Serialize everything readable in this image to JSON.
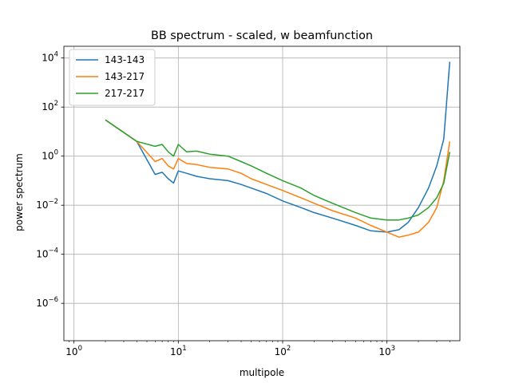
{
  "chart_data": {
    "type": "line",
    "title": "BB spectrum - scaled, w beamfunction",
    "xlabel": "multipole",
    "ylabel": "power spectrum",
    "xscale": "log",
    "yscale": "log",
    "xlim": [
      0.8,
      5000
    ],
    "ylim": [
      3e-08,
      30000
    ],
    "grid": true,
    "legend_position": "top-left",
    "x_ticks": [
      {
        "value": 1,
        "base": "10",
        "exp": "0"
      },
      {
        "value": 10,
        "base": "10",
        "exp": "1"
      },
      {
        "value": 100,
        "base": "10",
        "exp": "2"
      },
      {
        "value": 1000,
        "base": "10",
        "exp": "3"
      }
    ],
    "y_ticks": [
      {
        "value": 1e-06,
        "base": "10",
        "exp": "−6"
      },
      {
        "value": 0.0001,
        "base": "10",
        "exp": "−4"
      },
      {
        "value": 0.01,
        "base": "10",
        "exp": "−2"
      },
      {
        "value": 1,
        "base": "10",
        "exp": "0"
      },
      {
        "value": 100,
        "base": "10",
        "exp": "2"
      },
      {
        "value": 10000,
        "base": "10",
        "exp": "4"
      }
    ],
    "series": [
      {
        "name": "143-143",
        "color": "#1f77b4",
        "x": [
          2,
          4,
          6,
          7,
          8,
          9,
          10,
          12,
          15,
          20,
          30,
          40,
          50,
          70,
          100,
          150,
          200,
          300,
          500,
          700,
          1000,
          1300,
          1600,
          2000,
          2500,
          3000,
          3500,
          4000
        ],
        "y": [
          30,
          4,
          0.18,
          0.22,
          0.12,
          0.08,
          0.25,
          0.2,
          0.15,
          0.12,
          0.1,
          0.07,
          0.05,
          0.03,
          0.015,
          0.008,
          0.005,
          0.003,
          0.0015,
          0.0009,
          0.0008,
          0.001,
          0.002,
          0.008,
          0.05,
          0.4,
          5,
          7000
        ]
      },
      {
        "name": "143-217",
        "color": "#ff7f0e",
        "x": [
          2,
          4,
          6,
          7,
          8,
          9,
          10,
          12,
          15,
          20,
          30,
          40,
          50,
          70,
          100,
          150,
          200,
          300,
          500,
          700,
          1000,
          1300,
          1600,
          2000,
          2500,
          3000,
          3500,
          4000
        ],
        "y": [
          30,
          4,
          0.6,
          0.8,
          0.4,
          0.3,
          0.8,
          0.5,
          0.45,
          0.35,
          0.3,
          0.2,
          0.12,
          0.07,
          0.04,
          0.02,
          0.012,
          0.006,
          0.003,
          0.0015,
          0.0008,
          0.0005,
          0.0006,
          0.0008,
          0.002,
          0.008,
          0.1,
          4
        ]
      },
      {
        "name": "217-217",
        "color": "#2ca02c",
        "x": [
          2,
          4,
          6,
          7,
          8,
          9,
          10,
          12,
          15,
          20,
          30,
          40,
          50,
          70,
          100,
          150,
          200,
          300,
          500,
          700,
          1000,
          1300,
          1600,
          2000,
          2500,
          3000,
          3500,
          4000
        ],
        "y": [
          30,
          4,
          2.5,
          3,
          1.5,
          1,
          3,
          1.5,
          1.6,
          1.2,
          1.0,
          0.6,
          0.4,
          0.2,
          0.1,
          0.05,
          0.025,
          0.012,
          0.005,
          0.003,
          0.0025,
          0.0025,
          0.003,
          0.004,
          0.008,
          0.02,
          0.08,
          1.5
        ]
      }
    ]
  }
}
